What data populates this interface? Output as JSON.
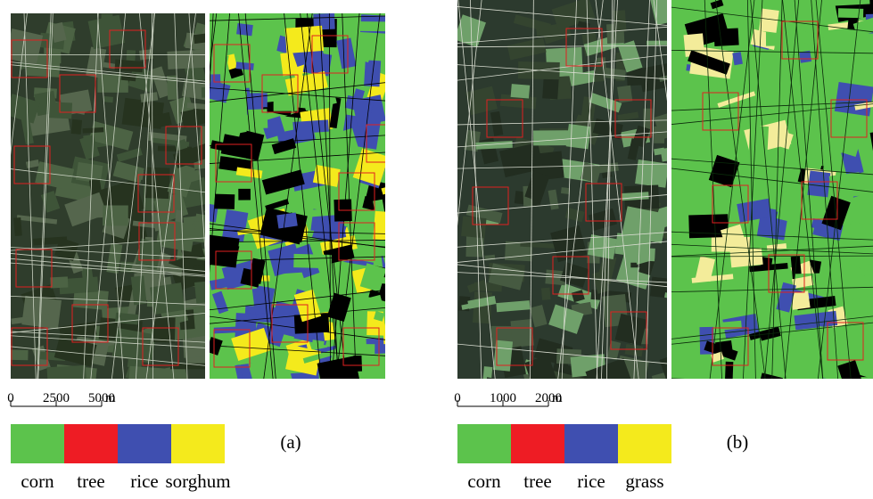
{
  "panels": [
    {
      "label": "(a)",
      "scale": {
        "ticks": [
          "0",
          "2500",
          "5000"
        ],
        "unit": "m"
      },
      "legend": [
        {
          "name": "corn",
          "color": "#5cc34c"
        },
        {
          "name": "tree",
          "color": "#ee1c24"
        },
        {
          "name": "rice",
          "color": "#3f4fb0"
        },
        {
          "name": "sorghum",
          "color": "#f4ea1c"
        }
      ]
    },
    {
      "label": "(b)",
      "scale": {
        "ticks": [
          "0",
          "1000",
          "2000"
        ],
        "unit": "m"
      },
      "legend": [
        {
          "name": "corn",
          "color": "#5cc34c"
        },
        {
          "name": "tree",
          "color": "#ee1c24"
        },
        {
          "name": "rice",
          "color": "#3f4fb0"
        },
        {
          "name": "grass",
          "color": "#f4ea1c"
        }
      ]
    }
  ]
}
